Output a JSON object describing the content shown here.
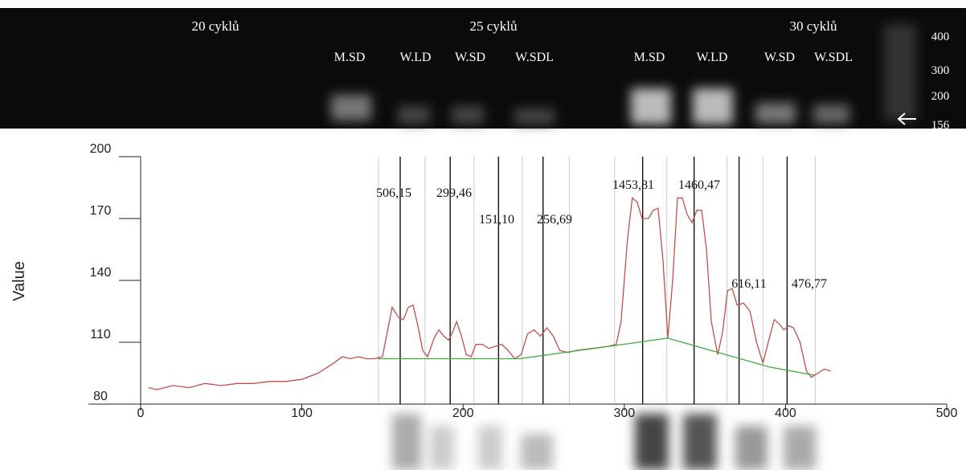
{
  "gel": {
    "group_labels": [
      "20 cyklů",
      "25 cyklů",
      "30 cyklů"
    ],
    "lane_labels": [
      "M.SD",
      "W.LD",
      "W.SD",
      "W.SDL",
      "M.SD",
      "W.LD",
      "W.SD",
      "W.SDL"
    ],
    "ladder": [
      400,
      300,
      200,
      156
    ]
  },
  "chart_data": {
    "type": "line",
    "y_label": "Value",
    "xlim": [
      0,
      500
    ],
    "xticks": [
      0,
      100,
      200,
      300,
      400,
      500
    ],
    "ylim": [
      80,
      200
    ],
    "yticks": [
      80,
      110,
      140,
      170,
      200
    ],
    "reference_lines_dark": [
      161,
      192,
      222,
      249.6,
      311.4,
      343.3,
      371.2,
      401
    ],
    "reference_lines_light": [
      147.5,
      176.4,
      206.8,
      236.7,
      266,
      294,
      326.4,
      363.7,
      386,
      418.5
    ],
    "annotations": [
      "506,15",
      "299,46",
      "151,10",
      "256,69",
      "1453,81",
      "1460,47",
      "616,11",
      "476,77"
    ],
    "series": [
      {
        "color": "#c0504d",
        "x": [
          5,
          10,
          20,
          30,
          40,
          50,
          60,
          70,
          80,
          90,
          100,
          110,
          120,
          125,
          130,
          135,
          140,
          145,
          150,
          153,
          156,
          160,
          163,
          166,
          169,
          172,
          175,
          178,
          182,
          185,
          188,
          191,
          193,
          196,
          199,
          202,
          205,
          208,
          212,
          216,
          220,
          224,
          228,
          232,
          236,
          240,
          244,
          248,
          252,
          256,
          260,
          265,
          270,
          280,
          290,
          295,
          298,
          302,
          305,
          308,
          311,
          315,
          318,
          321,
          324,
          327,
          330,
          333,
          336,
          339,
          342,
          345,
          348,
          351,
          354,
          358,
          361,
          364,
          367,
          370,
          374,
          378,
          382,
          386,
          390,
          393,
          396,
          399,
          402,
          405,
          409,
          413,
          416,
          420,
          424,
          428
        ],
        "values": [
          88,
          87,
          89,
          88,
          90,
          89,
          90,
          90,
          91,
          91,
          92,
          95,
          100,
          103,
          102,
          103,
          102,
          102,
          103,
          115,
          127,
          122,
          121,
          127,
          128,
          118,
          106,
          103,
          112,
          116,
          113,
          111,
          114,
          120,
          113,
          104,
          103,
          109,
          109,
          107,
          108,
          109,
          106,
          102,
          104,
          114,
          116,
          113,
          117,
          113,
          106,
          105,
          106,
          107,
          108,
          109,
          120,
          160,
          180,
          178,
          170,
          170,
          174,
          175,
          150,
          112,
          140,
          180,
          180,
          172,
          168,
          174,
          174,
          155,
          120,
          104,
          115,
          135,
          136,
          128,
          129,
          125,
          110,
          100,
          112,
          121,
          119,
          116,
          118,
          117,
          110,
          96,
          93,
          95,
          97,
          96
        ]
      },
      {
        "color": "#3faa3f",
        "x": [
          147,
          235,
          327,
          390,
          418
        ],
        "values": [
          102,
          102,
          112,
          98,
          94
        ]
      }
    ]
  }
}
